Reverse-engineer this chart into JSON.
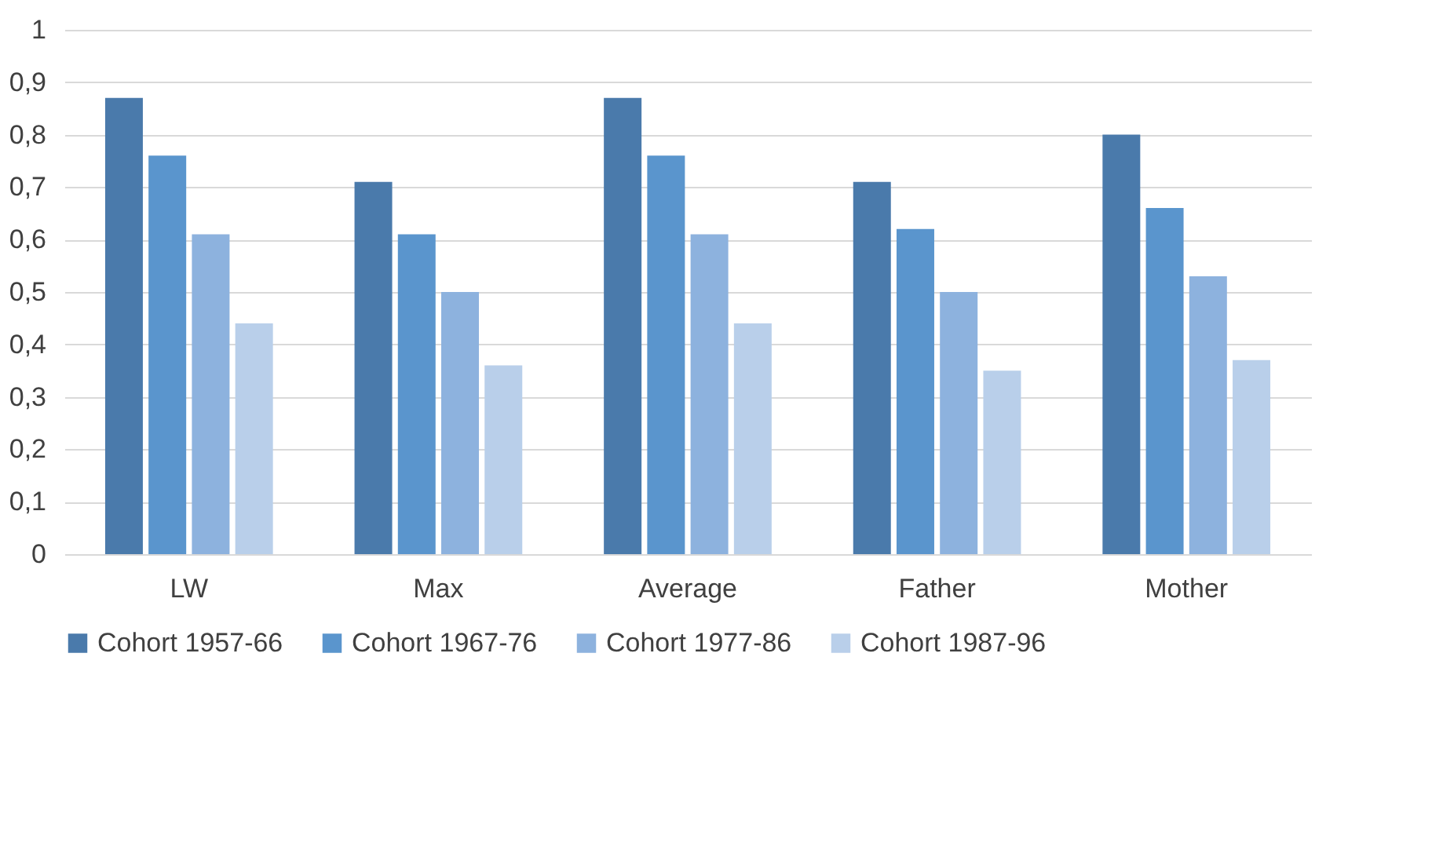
{
  "chart_data": {
    "type": "bar",
    "categories": [
      "LW",
      "Max",
      "Average",
      "Father",
      "Mother"
    ],
    "series": [
      {
        "name": "Cohort 1957-66",
        "color": "#4a7aab",
        "values": [
          0.87,
          0.71,
          0.87,
          0.71,
          0.8
        ]
      },
      {
        "name": "Cohort 1967-76",
        "color": "#5a95cd",
        "values": [
          0.76,
          0.61,
          0.76,
          0.62,
          0.66
        ]
      },
      {
        "name": "Cohort 1977-86",
        "color": "#8db2de",
        "values": [
          0.61,
          0.5,
          0.61,
          0.5,
          0.53
        ]
      },
      {
        "name": "Cohort 1987-96",
        "color": "#b9cfea",
        "values": [
          0.44,
          0.36,
          0.44,
          0.35,
          0.37
        ]
      }
    ],
    "ylim": [
      0,
      1
    ],
    "yticks": [
      0,
      {
        "value": 0.1,
        "label": "0,1"
      },
      {
        "value": 0.2,
        "label": "0,2"
      },
      {
        "value": 0.3,
        "label": "0,3"
      },
      {
        "value": 0.4,
        "label": "0,4"
      },
      {
        "value": 0.5,
        "label": "0,5"
      },
      {
        "value": 0.6,
        "label": "0,6"
      },
      {
        "value": 0.7,
        "label": "0,7"
      },
      {
        "value": 0.8,
        "label": "0,8"
      },
      {
        "value": 0.9,
        "label": "0,9"
      },
      1
    ],
    "grid": "y",
    "legend": "bottom"
  }
}
